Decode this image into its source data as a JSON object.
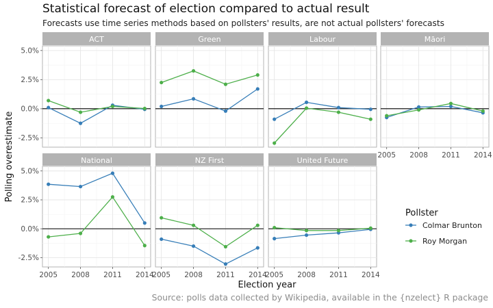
{
  "title": "Statistical forecast of election compared to actual result",
  "subtitle": "Forecasts use time series methods based on pollsters' results, are not actual pollsters' forecasts",
  "caption": "Source: polls data collected by Wikipedia, available in the {nzelect} R package",
  "chart_data": {
    "type": "line",
    "xlabel": "Election year",
    "ylabel": "Polling overestimate",
    "x": [
      2005,
      2008,
      2011,
      2014
    ],
    "x_ticks": [
      "2005",
      "2008",
      "2011",
      "2014"
    ],
    "y_ticks": [
      "-2.5%",
      "0.0%",
      "2.5%",
      "5.0%"
    ],
    "y_tick_values": [
      -2.5,
      0,
      2.5,
      5
    ],
    "ylim": [
      -3.3,
      5.4
    ],
    "grid": true,
    "legend": {
      "title": "Pollster",
      "position": "right",
      "entries": [
        {
          "name": "Colmar Brunton",
          "color": "#377eb8"
        },
        {
          "name": "Roy Morgan",
          "color": "#4daf4a"
        }
      ]
    },
    "panels": [
      {
        "name": "ACT",
        "series": [
          {
            "name": "Colmar Brunton",
            "values": [
              0.1,
              -1.25,
              0.3,
              -0.05
            ]
          },
          {
            "name": "Roy Morgan",
            "values": [
              0.7,
              -0.3,
              0.2,
              0.02
            ]
          }
        ]
      },
      {
        "name": "Green",
        "series": [
          {
            "name": "Colmar Brunton",
            "values": [
              0.2,
              0.85,
              -0.2,
              1.7
            ]
          },
          {
            "name": "Roy Morgan",
            "values": [
              2.25,
              3.25,
              2.1,
              2.9
            ]
          }
        ]
      },
      {
        "name": "Labour",
        "series": [
          {
            "name": "Colmar Brunton",
            "values": [
              -0.9,
              0.55,
              0.1,
              -0.05
            ]
          },
          {
            "name": "Roy Morgan",
            "values": [
              -2.95,
              0.05,
              -0.3,
              -0.9
            ]
          }
        ]
      },
      {
        "name": "Māori",
        "series": [
          {
            "name": "Colmar Brunton",
            "values": [
              -0.75,
              0.15,
              0.2,
              -0.35
            ]
          },
          {
            "name": "Roy Morgan",
            "values": [
              -0.6,
              -0.1,
              0.45,
              -0.2
            ]
          }
        ]
      },
      {
        "name": "National",
        "series": [
          {
            "name": "Colmar Brunton",
            "values": [
              3.85,
              3.65,
              4.8,
              0.5
            ]
          },
          {
            "name": "Roy Morgan",
            "values": [
              -0.7,
              -0.4,
              2.75,
              -1.45
            ]
          }
        ]
      },
      {
        "name": "NZ First",
        "series": [
          {
            "name": "Colmar Brunton",
            "values": [
              -0.9,
              -1.5,
              -3.05,
              -1.65
            ]
          },
          {
            "name": "Roy Morgan",
            "values": [
              0.95,
              0.3,
              -1.55,
              0.3
            ]
          }
        ]
      },
      {
        "name": "United Future",
        "series": [
          {
            "name": "Colmar Brunton",
            "values": [
              -0.85,
              -0.55,
              -0.35,
              -0.05
            ]
          },
          {
            "name": "Roy Morgan",
            "values": [
              0.1,
              -0.15,
              -0.15,
              0.05
            ]
          }
        ]
      }
    ]
  }
}
